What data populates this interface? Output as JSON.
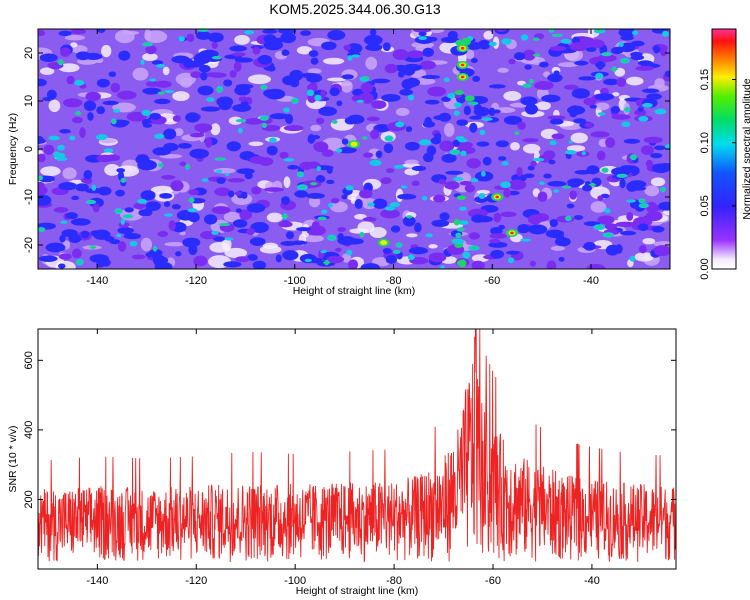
{
  "figure": {
    "title": "KOM5.2025.344.06.30.G13"
  },
  "chart_data": [
    {
      "type": "heatmap",
      "title": "KOM5.2025.344.06.30.G13",
      "xlabel": "Height of straight line (km)",
      "ylabel": "Frequency (Hz)",
      "xlim": [
        -152,
        -24
      ],
      "ylim": [
        -25,
        25
      ],
      "x_ticks": [
        -140,
        -120,
        -100,
        -80,
        -60,
        -40
      ],
      "y_ticks": [
        -20,
        -10,
        0,
        10,
        20
      ],
      "colorbar": {
        "label": "Normalized spectral amplitude",
        "range": [
          0,
          0.19
        ],
        "ticks": [
          0.0,
          0.05,
          0.1,
          0.15
        ],
        "tick_labels": [
          "0.00",
          "0.05",
          "0.10",
          "0.15"
        ],
        "colormap": "rainbow (white-purple-blue-cyan-green-yellow-red-magenta)"
      },
      "peaks": [
        {
          "x": -66,
          "y": 21,
          "value": 0.17
        },
        {
          "x": -66,
          "y": 17.5,
          "value": 0.16
        },
        {
          "x": -66,
          "y": 15,
          "value": 0.14
        },
        {
          "x": -59,
          "y": -10,
          "value": 0.15
        },
        {
          "x": -56,
          "y": -17.5,
          "value": 0.18
        },
        {
          "x": -82,
          "y": -19.5,
          "value": 0.13
        },
        {
          "x": -88,
          "y": 1,
          "value": 0.11
        }
      ]
    },
    {
      "type": "line",
      "xlabel": "Height of straight line (km)",
      "ylabel": "SNR (10 * v/v)",
      "xlim": [
        -152,
        -23
      ],
      "ylim": [
        0,
        690
      ],
      "x_ticks": [
        -140,
        -120,
        -100,
        -80,
        -60,
        -40
      ],
      "y_ticks": [
        200,
        400,
        600
      ],
      "baseline": 110,
      "peak": {
        "x": -63.5,
        "y": 690
      },
      "series": [
        {
          "color": "#ee2222",
          "x": [
            -152,
            -140,
            -130,
            -120,
            -110,
            -100,
            -90,
            -80,
            -75,
            -70,
            -67,
            -65,
            -64,
            -63.5,
            -63,
            -62,
            -60,
            -58,
            -55,
            -50,
            -45,
            -40,
            -35,
            -30,
            -23
          ],
          "y": [
            230,
            240,
            235,
            240,
            250,
            245,
            250,
            255,
            270,
            320,
            410,
            560,
            640,
            690,
            580,
            470,
            420,
            380,
            330,
            300,
            270,
            260,
            250,
            245,
            240
          ]
        }
      ]
    }
  ],
  "colors": {
    "line": "#ee2222",
    "axis": "#000000",
    "background": "#ffffff"
  }
}
